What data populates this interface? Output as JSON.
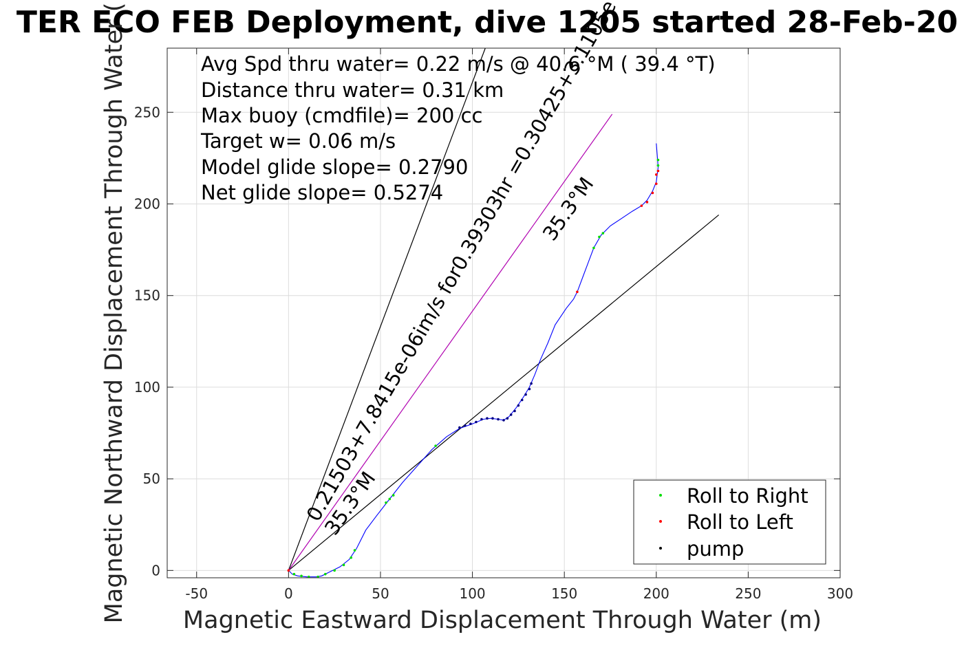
{
  "chart_data": {
    "type": "scatter",
    "title": "TER ECO FEB Deployment, dive 1205 started 28-Feb-20",
    "xlabel": "Magnetic Eastward Displacement Through Water (m)",
    "ylabel": "Magnetic Northward Displacement Through Water (",
    "xlim": [
      -66,
      300
    ],
    "ylim": [
      -4,
      285
    ],
    "grid": true,
    "xticks": [
      -50,
      0,
      50,
      100,
      150,
      200,
      250,
      300
    ],
    "yticks": [
      0,
      50,
      100,
      150,
      200,
      250
    ],
    "xtick_labels": [
      "-50",
      "0",
      "50",
      "100",
      "150",
      "200",
      "250",
      "300"
    ],
    "ytick_labels": [
      "0",
      "50",
      "100",
      "150",
      "200",
      "250"
    ],
    "info_lines": [
      "Avg Spd thru water=  0.22 m/s @  40.6 °M ( 39.4 °T)",
      "Distance thru water=  0.31 km",
      "Max buoy (cmdfile)= 200 cc",
      "Target w= 0.06 m/s",
      "Model glide slope= 0.2790",
      "Net glide slope= 0.5274"
    ],
    "annotations": {
      "steep_line_label": "0.21503+7.8415e-06im/s for0.39303hr =0.30425+3.1105e",
      "heading_label_upper": "35.3°M",
      "heading_label_lower": "35.3°M"
    },
    "reference_lines": [
      {
        "name": "",
        "color": "#000000",
        "points": [
          [
            0,
            0
          ],
          [
            107,
            285
          ]
        ]
      },
      {
        "name": "",
        "color": "#000000",
        "points": [
          [
            0,
            0
          ],
          [
            234,
            194
          ]
        ]
      },
      {
        "name": "",
        "color": "#b000b0",
        "points": [
          [
            0,
            0
          ],
          [
            176,
            249
          ]
        ]
      }
    ],
    "track": {
      "color": "#0000ff",
      "points": [
        [
          0,
          0
        ],
        [
          2,
          -2
        ],
        [
          5,
          -3
        ],
        [
          10,
          -3.5
        ],
        [
          15,
          -3.5
        ],
        [
          18,
          -3
        ],
        [
          22,
          -1
        ],
        [
          28,
          2
        ],
        [
          33,
          6
        ],
        [
          37,
          12
        ],
        [
          42,
          22
        ],
        [
          48,
          30
        ],
        [
          55,
          39
        ],
        [
          62,
          48
        ],
        [
          70,
          57
        ],
        [
          78,
          66
        ],
        [
          86,
          73
        ],
        [
          93,
          77.5
        ],
        [
          100,
          80
        ],
        [
          106,
          82.5
        ],
        [
          110,
          83
        ],
        [
          114,
          82.5
        ],
        [
          117,
          82
        ],
        [
          120,
          84
        ],
        [
          124,
          89
        ],
        [
          128,
          95
        ],
        [
          131,
          100
        ],
        [
          134,
          107
        ],
        [
          137,
          115
        ],
        [
          141,
          124
        ],
        [
          145,
          134
        ],
        [
          151,
          143
        ],
        [
          155,
          148
        ],
        [
          157,
          152
        ],
        [
          160,
          160
        ],
        [
          163,
          168
        ],
        [
          166,
          176
        ],
        [
          170,
          183
        ],
        [
          175,
          188
        ],
        [
          181,
          192
        ],
        [
          187,
          196
        ],
        [
          192,
          199
        ],
        [
          195,
          202
        ],
        [
          198,
          207
        ],
        [
          200,
          212
        ],
        [
          201,
          220
        ],
        [
          200.5,
          227
        ],
        [
          200,
          233
        ]
      ]
    },
    "series": [
      {
        "name": "Roll to Right",
        "color": "#00dd00",
        "points": [
          [
            3,
            -2
          ],
          [
            7,
            -3
          ],
          [
            11,
            -3.5
          ],
          [
            16,
            -3.5
          ],
          [
            20,
            -2
          ],
          [
            25,
            0
          ],
          [
            30,
            3
          ],
          [
            34,
            7
          ],
          [
            36,
            11
          ],
          [
            53,
            37
          ],
          [
            55,
            39
          ],
          [
            57,
            41
          ],
          [
            80,
            68
          ],
          [
            166,
            176
          ],
          [
            169,
            182
          ],
          [
            171,
            184
          ],
          [
            201,
            221
          ],
          [
            201,
            224
          ]
        ]
      },
      {
        "name": "Roll to Left",
        "color": "#ff0000",
        "points": [
          [
            0,
            0
          ],
          [
            157,
            152
          ],
          [
            192,
            199
          ],
          [
            195,
            201
          ],
          [
            198,
            206
          ],
          [
            200,
            211
          ],
          [
            200,
            216
          ],
          [
            201,
            218
          ]
        ]
      },
      {
        "name": "pump",
        "color": "#000080",
        "points": [
          [
            93,
            78
          ],
          [
            96,
            79
          ],
          [
            99,
            80
          ],
          [
            102,
            81
          ],
          [
            105,
            82.5
          ],
          [
            108,
            83
          ],
          [
            111,
            83
          ],
          [
            114,
            82.5
          ],
          [
            117,
            82
          ],
          [
            119,
            83
          ],
          [
            121,
            85
          ],
          [
            123,
            87
          ],
          [
            125,
            90
          ],
          [
            127,
            93
          ],
          [
            129,
            96
          ],
          [
            131,
            99
          ],
          [
            132,
            102
          ]
        ]
      }
    ],
    "legend": {
      "position": "bottom-right",
      "entries": [
        {
          "label": "Roll to Right",
          "color": "#00dd00"
        },
        {
          "label": "Roll to Left",
          "color": "#ff0000"
        },
        {
          "label": "pump",
          "color": "#000000"
        }
      ]
    }
  }
}
